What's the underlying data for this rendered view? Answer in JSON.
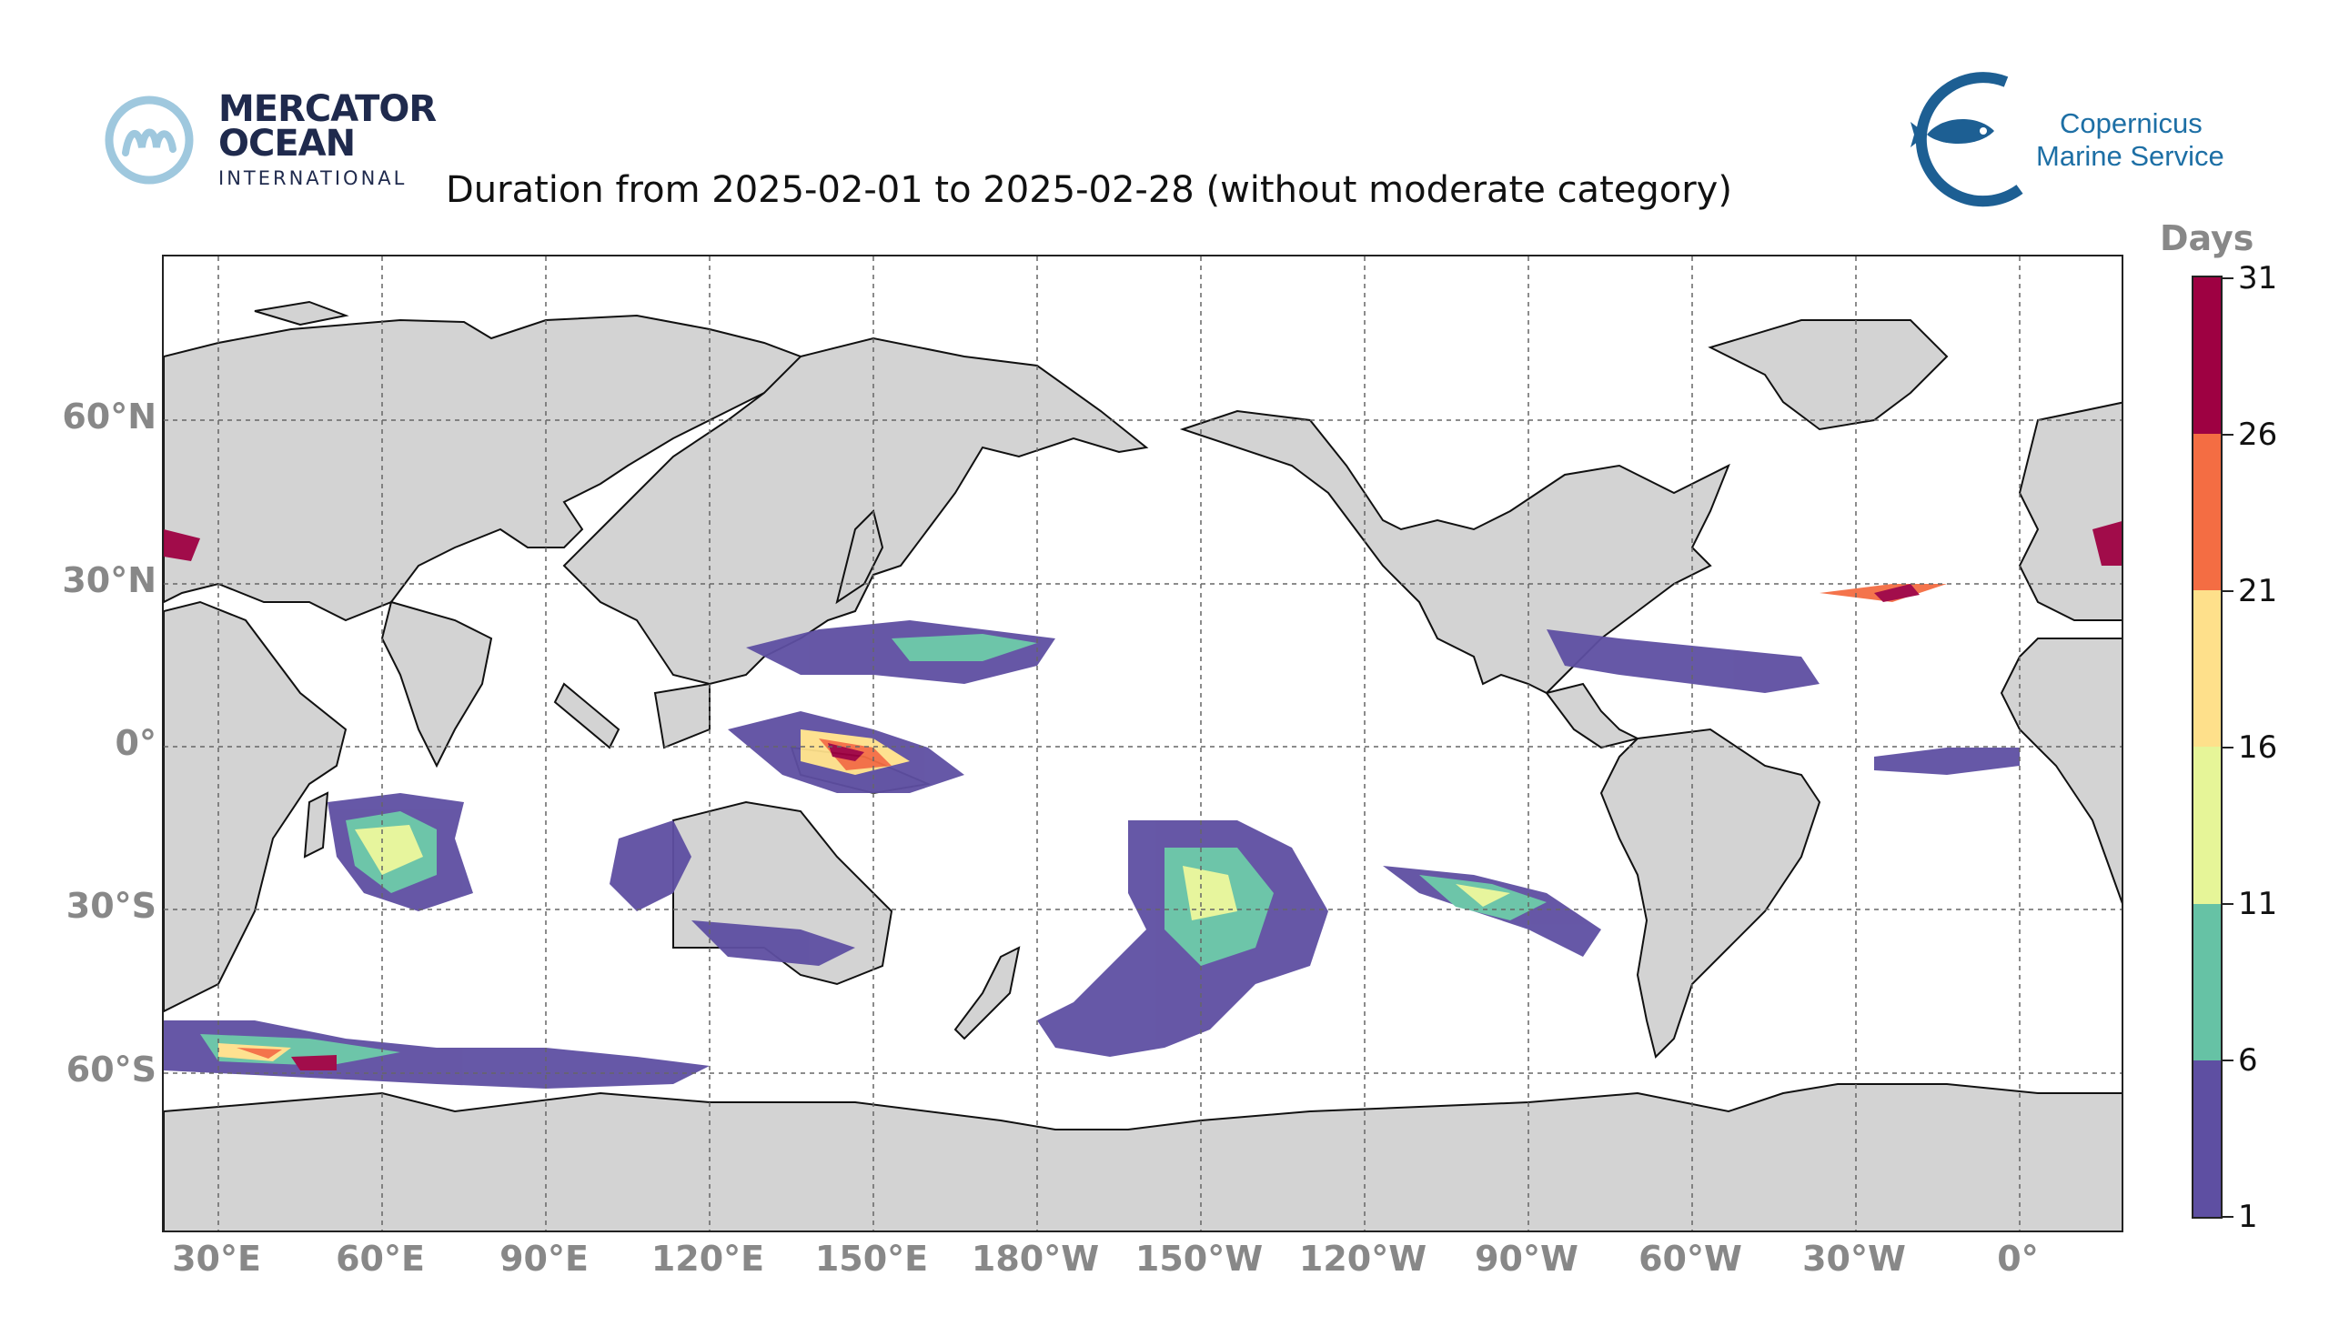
{
  "logos": {
    "mercator": {
      "line1": "MERCATOR",
      "line2": "OCEAN",
      "line3": "INTERNATIONAL"
    },
    "copernicus": {
      "line1": "Copernicus",
      "line2": "Marine Service"
    }
  },
  "title": "Duration from 2025-02-01 to 2025-02-28 (without moderate category)",
  "map": {
    "land_color": "#d3d3d3",
    "ocean_color": "#ffffff",
    "gridlines": "dashed",
    "lat_labels": [
      "60°N",
      "30°N",
      "0°",
      "30°S",
      "60°S"
    ],
    "lon_labels": [
      "30°E",
      "60°E",
      "90°E",
      "120°E",
      "150°E",
      "180°W",
      "150°W",
      "120°W",
      "90°W",
      "60°W",
      "30°W",
      "0°"
    ],
    "lat_values": [
      60,
      30,
      0,
      -30,
      -60
    ],
    "lon_values": [
      30,
      60,
      90,
      120,
      150,
      180,
      -150,
      -120,
      -90,
      -60,
      -30,
      0
    ]
  },
  "colorbar": {
    "title": "Days",
    "ticks": [
      "1",
      "6",
      "11",
      "16",
      "21",
      "26",
      "31"
    ],
    "colors": [
      "#5e4fa2",
      "#66c2a5",
      "#e6f598",
      "#fee08b",
      "#f46d43",
      "#9e0142"
    ]
  }
}
